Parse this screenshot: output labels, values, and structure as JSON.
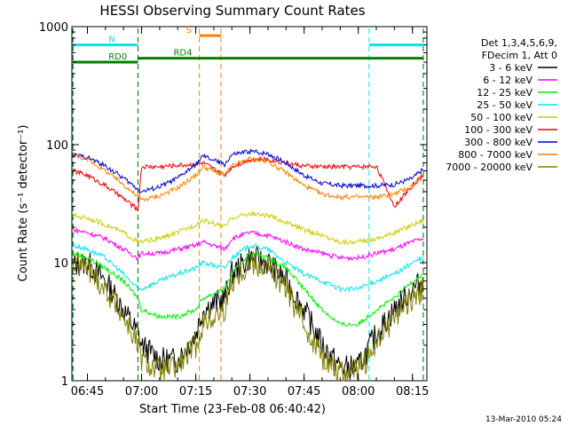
{
  "footer_timestamp": "13-Mar-2010 05:24",
  "chart_data": {
    "type": "line",
    "title": "HESSI Observing Summary Count Rates",
    "xlabel": "Start Time (23-Feb-08 06:40:42)",
    "ylabel": "Count Rate (s⁻¹ detector⁻¹)",
    "y_scale": "log",
    "ylim": [
      1,
      1000
    ],
    "xlim": [
      "06:40:42",
      "08:19:00"
    ],
    "x_ticks": [
      "06:45",
      "07:00",
      "07:15",
      "07:30",
      "07:45",
      "08:00",
      "08:15"
    ],
    "y_ticks": [
      "1",
      "10",
      "100",
      "1000"
    ],
    "legend_position": "right",
    "legend_header": [
      "Det 1,3,4,5,6,9,",
      "FDecim 1, Att 0"
    ],
    "series": [
      {
        "name": "3 - 6 keV",
        "color": "#000000",
        "x": [
          "06:41",
          "06:45",
          "06:50",
          "06:55",
          "06:59",
          "07:00",
          "07:05",
          "07:10",
          "07:15",
          "07:17",
          "07:23",
          "07:25",
          "07:30",
          "07:35",
          "07:40",
          "07:45",
          "07:50",
          "07:55",
          "08:00",
          "08:05",
          "08:10",
          "08:15",
          "08:18"
        ],
        "y": [
          9.5,
          10,
          7,
          4,
          2.5,
          2,
          1.5,
          1.5,
          2.5,
          4,
          5,
          8,
          11,
          10,
          7,
          4,
          2,
          1.3,
          1.3,
          2.5,
          4,
          6,
          7
        ]
      },
      {
        "name": "6 - 12 keV",
        "color": "#ff00ff",
        "x": [
          "06:41",
          "06:45",
          "06:50",
          "06:55",
          "06:59",
          "07:00",
          "07:05",
          "07:10",
          "07:15",
          "07:17",
          "07:23",
          "07:25",
          "07:30",
          "07:35",
          "07:40",
          "07:45",
          "07:50",
          "07:55",
          "08:00",
          "08:05",
          "08:10",
          "08:15",
          "08:18"
        ],
        "y": [
          19,
          18,
          16,
          13,
          11,
          12,
          12,
          13,
          14,
          15,
          13,
          16,
          18,
          17,
          15,
          13,
          12,
          11,
          11,
          12,
          13,
          15,
          16
        ]
      },
      {
        "name": "12 - 25 keV",
        "color": "#00ee00",
        "x": [
          "06:41",
          "06:45",
          "06:50",
          "06:55",
          "06:59",
          "07:00",
          "07:05",
          "07:10",
          "07:15",
          "07:17",
          "07:23",
          "07:25",
          "07:30",
          "07:35",
          "07:40",
          "07:45",
          "07:50",
          "07:55",
          "08:00",
          "08:05",
          "08:10",
          "08:15",
          "08:18"
        ],
        "y": [
          12,
          11,
          9,
          7,
          5,
          4,
          3.5,
          3.5,
          4,
          5,
          6,
          8,
          12,
          11,
          9,
          6,
          4,
          3,
          3,
          4,
          5,
          7,
          8
        ]
      },
      {
        "name": "25 - 50 keV",
        "color": "#00e5ee",
        "x": [
          "06:41",
          "06:45",
          "06:50",
          "06:55",
          "06:59",
          "07:00",
          "07:05",
          "07:10",
          "07:15",
          "07:17",
          "07:23",
          "07:25",
          "07:30",
          "07:35",
          "07:40",
          "07:45",
          "07:50",
          "07:55",
          "08:00",
          "08:05",
          "08:10",
          "08:15",
          "08:18"
        ],
        "y": [
          14,
          13,
          11,
          8,
          6,
          6,
          7,
          8,
          9,
          10,
          9,
          11,
          14,
          13,
          10,
          8,
          7,
          6,
          6,
          7,
          8,
          10,
          11
        ]
      },
      {
        "name": "50 - 100 keV",
        "color": "#cccc00",
        "x": [
          "06:41",
          "06:45",
          "06:50",
          "06:55",
          "06:59",
          "07:00",
          "07:05",
          "07:10",
          "07:15",
          "07:17",
          "07:23",
          "07:25",
          "07:30",
          "07:35",
          "07:40",
          "07:45",
          "07:50",
          "07:55",
          "08:00",
          "08:05",
          "08:10",
          "08:15",
          "08:18"
        ],
        "y": [
          25,
          24,
          21,
          18,
          15,
          15,
          16,
          18,
          21,
          23,
          20,
          24,
          26,
          25,
          22,
          19,
          17,
          15,
          15,
          16,
          18,
          21,
          23
        ]
      },
      {
        "name": "100 - 300 keV",
        "color": "#ee0000",
        "x": [
          "06:41",
          "06:45",
          "06:50",
          "06:55",
          "06:59",
          "07:00",
          "07:05",
          "07:10",
          "07:15",
          "07:17",
          "07:23",
          "07:25",
          "07:30",
          "07:35",
          "07:40",
          "07:45",
          "07:50",
          "07:55",
          "08:00",
          "08:05",
          "08:10",
          "08:15",
          "08:18"
        ],
        "y": [
          60,
          55,
          45,
          35,
          28,
          65,
          65,
          67,
          68,
          70,
          55,
          65,
          75,
          75,
          70,
          66,
          65,
          65,
          65,
          66,
          30,
          45,
          55
        ]
      },
      {
        "name": "300 - 800 keV",
        "color": "#0000cc",
        "x": [
          "06:41",
          "06:45",
          "06:50",
          "06:55",
          "06:59",
          "07:00",
          "07:05",
          "07:10",
          "07:15",
          "07:17",
          "07:23",
          "07:25",
          "07:30",
          "07:35",
          "07:40",
          "07:45",
          "07:50",
          "07:55",
          "08:00",
          "08:05",
          "08:10",
          "08:15",
          "08:18"
        ],
        "y": [
          82,
          78,
          66,
          52,
          42,
          40,
          44,
          52,
          68,
          80,
          68,
          82,
          88,
          84,
          70,
          55,
          47,
          45,
          45,
          45,
          46,
          52,
          62
        ]
      },
      {
        "name": "800 - 7000 keV",
        "color": "#ff7f00",
        "x": [
          "06:41",
          "06:45",
          "06:50",
          "06:55",
          "06:59",
          "07:00",
          "07:05",
          "07:10",
          "07:15",
          "07:17",
          "07:23",
          "07:25",
          "07:30",
          "07:35",
          "07:40",
          "07:45",
          "07:50",
          "07:55",
          "08:00",
          "08:05",
          "08:10",
          "08:15",
          "08:18"
        ],
        "y": [
          82,
          75,
          60,
          46,
          36,
          34,
          37,
          43,
          55,
          65,
          55,
          66,
          76,
          72,
          58,
          45,
          38,
          36,
          36,
          36,
          38,
          45,
          55
        ]
      },
      {
        "name": "7000 - 20000 keV",
        "color": "#808000",
        "x": [
          "06:41",
          "06:45",
          "06:50",
          "06:55",
          "06:59",
          "07:00",
          "07:05",
          "07:10",
          "07:15",
          "07:17",
          "07:23",
          "07:25",
          "07:30",
          "07:35",
          "07:40",
          "07:45",
          "07:50",
          "07:55",
          "08:00",
          "08:05",
          "08:10",
          "08:15",
          "08:18"
        ],
        "y": [
          10,
          9,
          6,
          3.5,
          2,
          1.5,
          1.2,
          1.3,
          2,
          3,
          4,
          7,
          10,
          9,
          6,
          3,
          1.6,
          1.2,
          1.2,
          2,
          3.5,
          5,
          6
        ]
      }
    ],
    "annotations": [
      {
        "label": "N",
        "color": "#00e5ee",
        "start": "06:41",
        "end": "06:59",
        "level": 700
      },
      {
        "label": "",
        "color": "#00e5ee",
        "start": "08:03",
        "end": "08:18",
        "level": 700
      },
      {
        "label": "S",
        "color": "#ff7f00",
        "start": "07:16",
        "end": "07:22",
        "level": 840
      },
      {
        "label": "RD0",
        "color": "#008000",
        "start": "06:41",
        "end": "06:59",
        "level": 500
      },
      {
        "label": "RD4",
        "color": "#008000",
        "start": "06:59",
        "end": "08:18",
        "level": 540
      }
    ]
  }
}
